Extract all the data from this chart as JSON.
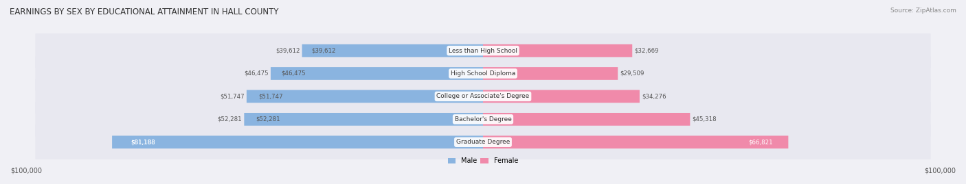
{
  "title": "EARNINGS BY SEX BY EDUCATIONAL ATTAINMENT IN HALL COUNTY",
  "source": "Source: ZipAtlas.com",
  "categories": [
    "Less than High School",
    "High School Diploma",
    "College or Associate's Degree",
    "Bachelor's Degree",
    "Graduate Degree"
  ],
  "male_values": [
    39612,
    46475,
    51747,
    52281,
    81188
  ],
  "female_values": [
    32669,
    29509,
    34276,
    45318,
    66821
  ],
  "male_color": "#8ab4e0",
  "female_color": "#f08aaa",
  "max_value": 100000,
  "background_color": "#f0f0f5",
  "bar_bg_color": "#e8e8f0",
  "label_color_inside": "#ffffff",
  "label_color_outside": "#555555",
  "inside_threshold": 15000
}
